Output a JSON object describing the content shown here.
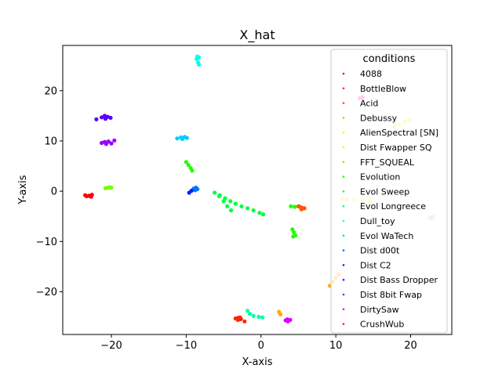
{
  "chart_data": {
    "type": "scatter",
    "title": "X_hat",
    "xlabel": "X-axis",
    "ylabel": "Y-axis",
    "xlim": [
      -26.5,
      25.5
    ],
    "ylim": [
      -28.5,
      29
    ],
    "xticks": [
      -20,
      -10,
      0,
      10,
      20
    ],
    "yticks": [
      -20,
      -10,
      0,
      10,
      20
    ],
    "grid": false,
    "legend": {
      "title": "conditions",
      "placement": "top-right"
    },
    "series": [
      {
        "name": "4088",
        "color": "#ff0000",
        "points": [
          [
            -23.3,
            -1
          ],
          [
            -23.0,
            -0.9
          ],
          [
            -22.7,
            -1.1
          ],
          [
            -23.5,
            -0.8
          ],
          [
            -22.6,
            -0.7
          ],
          [
            -3.2,
            -25.3
          ],
          [
            -2.9,
            -25.5
          ],
          [
            -3.0,
            -25.2
          ],
          [
            -2.7,
            -25.4
          ]
        ]
      },
      {
        "name": "BottleBlow",
        "color": "#ff2a00",
        "points": [
          [
            -3.4,
            -25.3
          ],
          [
            -3.1,
            -25.6
          ],
          [
            -2.8,
            -25.1
          ],
          [
            -2.2,
            -25.9
          ]
        ]
      },
      {
        "name": "Acid",
        "color": "#ff5500",
        "points": [
          [
            5.2,
            -3.1
          ],
          [
            5.5,
            -3.3
          ],
          [
            5.8,
            -3.4
          ],
          [
            5.4,
            -3.6
          ],
          [
            5.0,
            -3.0
          ]
        ]
      },
      {
        "name": "Debussy",
        "color": "#ffaa00",
        "points": [
          [
            9.2,
            -18.8
          ],
          [
            9.6,
            -18.0
          ],
          [
            10.0,
            -17.2
          ],
          [
            10.4,
            -16.5
          ],
          [
            2.4,
            -24.0
          ],
          [
            2.6,
            -24.5
          ]
        ]
      },
      {
        "name": "AlienSpectral [SN]",
        "color": "#ffee00",
        "points": [
          [
            10.8,
            -1.5
          ],
          [
            11.5,
            -1.6
          ],
          [
            12.5,
            -1.7
          ],
          [
            13.5,
            -1.9
          ],
          [
            14.5,
            -2.0
          ]
        ]
      },
      {
        "name": "Dist Fwapper SQ",
        "color": "#ccff00",
        "points": [
          [
            17.8,
            12.8
          ],
          [
            18.5,
            13.3
          ],
          [
            19.2,
            13.8
          ],
          [
            19.8,
            14.2
          ]
        ]
      },
      {
        "name": "FFT_SQUEAL",
        "color": "#77ff00",
        "points": [
          [
            -20.8,
            0.6
          ],
          [
            -20.5,
            0.7
          ],
          [
            -20.2,
            0.8
          ],
          [
            -20.0,
            0.7
          ]
        ]
      },
      {
        "name": "Evolution",
        "color": "#22ff00",
        "points": [
          [
            -10.0,
            5.8
          ],
          [
            -9.7,
            5.2
          ],
          [
            -9.4,
            4.6
          ],
          [
            -9.2,
            4.1
          ],
          [
            4.2,
            -7.6
          ],
          [
            4.4,
            -8.2
          ],
          [
            4.6,
            -8.8
          ],
          [
            4.3,
            -9.0
          ],
          [
            4.0,
            -3.0
          ],
          [
            4.5,
            -3.1
          ]
        ]
      },
      {
        "name": "Evol Sweep",
        "color": "#00ff44",
        "points": [
          [
            -6.2,
            -0.3
          ],
          [
            -5.5,
            -0.8
          ],
          [
            -4.8,
            -1.4
          ],
          [
            -4.1,
            -2.0
          ],
          [
            -3.4,
            -2.5
          ],
          [
            -2.6,
            -3.0
          ],
          [
            -1.8,
            -3.4
          ],
          [
            -1.0,
            -3.8
          ],
          [
            -0.2,
            -4.3
          ],
          [
            0.3,
            -4.6
          ],
          [
            -5.6,
            -1.0
          ],
          [
            -5.0,
            -2.0
          ],
          [
            -4.5,
            -3.0
          ],
          [
            -4.0,
            -3.8
          ]
        ]
      },
      {
        "name": "Evol Longreece",
        "color": "#00ffaa",
        "points": [
          [
            -1.8,
            -23.8
          ],
          [
            -1.5,
            -24.4
          ],
          [
            -1.0,
            -24.8
          ],
          [
            -0.3,
            -25.0
          ],
          [
            0.2,
            -25.1
          ]
        ]
      },
      {
        "name": "Dull_toy",
        "color": "#00ffee",
        "points": [
          [
            -8.6,
            26.3
          ],
          [
            -8.3,
            26.6
          ],
          [
            -8.5,
            26.8
          ],
          [
            -8.4,
            25.6
          ],
          [
            -8.3,
            25.2
          ]
        ]
      },
      {
        "name": "Evol WaTech",
        "color": "#00ccff",
        "points": [
          [
            -11.2,
            10.5
          ],
          [
            -10.7,
            10.7
          ],
          [
            -10.2,
            10.8
          ],
          [
            -9.9,
            10.6
          ],
          [
            -10.5,
            10.4
          ]
        ]
      },
      {
        "name": "Dist d00t",
        "color": "#0077ff",
        "points": [
          [
            -9.0,
            0.5
          ],
          [
            -8.7,
            0.7
          ],
          [
            -8.5,
            0.4
          ],
          [
            -8.8,
            0.2
          ]
        ]
      },
      {
        "name": "Dist C2",
        "color": "#0022ff",
        "points": [
          [
            -9.6,
            -0.3
          ],
          [
            -9.3,
            0.1
          ]
        ]
      },
      {
        "name": "Dist Bass Dropper",
        "color": "#5500ff",
        "points": [
          [
            -21.3,
            14.7
          ],
          [
            -20.9,
            15.0
          ],
          [
            -20.5,
            14.8
          ],
          [
            -20.1,
            14.6
          ],
          [
            -22.0,
            14.3
          ],
          [
            -20.8,
            14.4
          ]
        ]
      },
      {
        "name": "Dist 8bit Fwap",
        "color": "#9900ff",
        "points": [
          [
            -21.3,
            9.6
          ],
          [
            -20.9,
            9.8
          ],
          [
            -20.4,
            9.9
          ],
          [
            -20.0,
            9.5
          ],
          [
            -19.6,
            10.1
          ],
          [
            -20.7,
            9.4
          ]
        ]
      },
      {
        "name": "DirtySaw",
        "color": "#dd00ff",
        "points": [
          [
            3.3,
            -25.7
          ],
          [
            3.6,
            -25.9
          ],
          [
            3.9,
            -25.6
          ],
          [
            3.5,
            -25.5
          ]
        ]
      },
      {
        "name": "CrushWub",
        "color": "#ff00cc",
        "points": [
          [
            13.2,
            18.5
          ],
          [
            13.6,
            18.7
          ]
        ]
      },
      {
        "name": "",
        "color": "#aabbff",
        "points": [
          [
            22.6,
            -5.2
          ],
          [
            23.0,
            -5.1
          ],
          [
            22.8,
            -5.4
          ]
        ]
      }
    ]
  }
}
